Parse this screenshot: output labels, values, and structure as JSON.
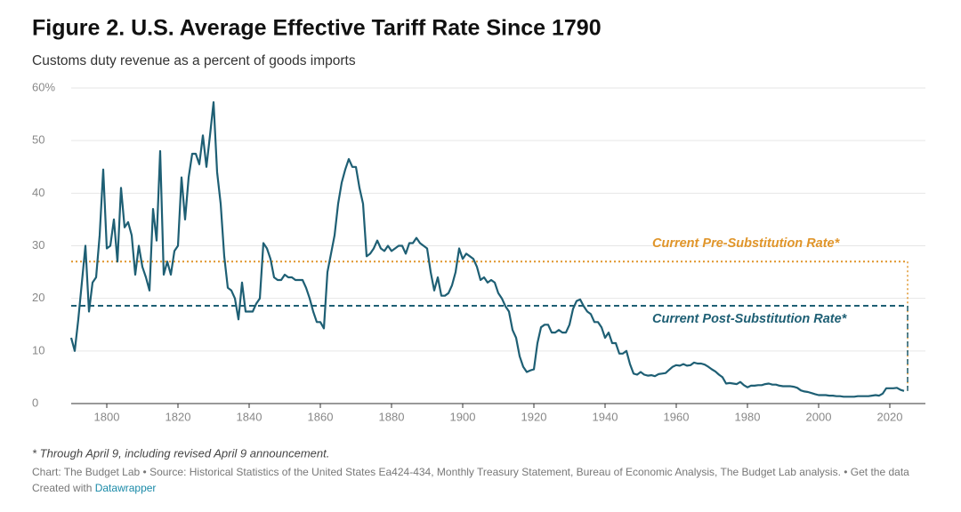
{
  "chart_data": {
    "type": "line",
    "title": "Figure 2. U.S. Average Effective Tariff Rate Since 1790",
    "subtitle": "Customs duty revenue as a percent of goods imports",
    "note": "* Through April 9, including revised April 9 announcement.",
    "source": "Chart: The Budget Lab • Source: Historical Statistics of the United States Ea424-434, Monthly Treasury Statement, Bureau of Economic Analysis, The Budget Lab analysis. • Get the data",
    "credit": "Created with",
    "credit_link": "Datawrapper",
    "color": "#1e5f74",
    "grid": true,
    "xlim": [
      1790,
      2030
    ],
    "ylim": [
      0,
      60
    ],
    "xticks": [
      1800,
      1820,
      1840,
      1860,
      1880,
      1900,
      1920,
      1940,
      1960,
      1980,
      2000,
      2020
    ],
    "yticks": [
      0,
      10,
      20,
      30,
      40,
      50,
      {
        "value": 60,
        "label": "60%"
      }
    ],
    "reference_lines": [
      {
        "label": "Current Pre-Substitution Rate*",
        "value": 27,
        "color": "#e0952a",
        "style": "dotted"
      },
      {
        "label": "Current Post-Substitution Rate*",
        "value": 18.6,
        "color": "#1e5f74",
        "style": "dashed"
      }
    ],
    "x": [
      1790,
      1791,
      1792,
      1793,
      1794,
      1795,
      1796,
      1797,
      1798,
      1799,
      1800,
      1801,
      1802,
      1803,
      1804,
      1805,
      1806,
      1807,
      1808,
      1809,
      1810,
      1811,
      1812,
      1813,
      1814,
      1815,
      1816,
      1817,
      1818,
      1819,
      1820,
      1821,
      1822,
      1823,
      1824,
      1825,
      1826,
      1827,
      1828,
      1829,
      1830,
      1831,
      1832,
      1833,
      1834,
      1835,
      1836,
      1837,
      1838,
      1839,
      1840,
      1841,
      1842,
      1843,
      1844,
      1845,
      1846,
      1847,
      1848,
      1849,
      1850,
      1851,
      1852,
      1853,
      1854,
      1855,
      1856,
      1857,
      1858,
      1859,
      1860,
      1861,
      1862,
      1863,
      1864,
      1865,
      1866,
      1867,
      1868,
      1869,
      1870,
      1871,
      1872,
      1873,
      1874,
      1875,
      1876,
      1877,
      1878,
      1879,
      1880,
      1881,
      1882,
      1883,
      1884,
      1885,
      1886,
      1887,
      1888,
      1889,
      1890,
      1891,
      1892,
      1893,
      1894,
      1895,
      1896,
      1897,
      1898,
      1899,
      1900,
      1901,
      1902,
      1903,
      1904,
      1905,
      1906,
      1907,
      1908,
      1909,
      1910,
      1911,
      1912,
      1913,
      1914,
      1915,
      1916,
      1917,
      1918,
      1919,
      1920,
      1921,
      1922,
      1923,
      1924,
      1925,
      1926,
      1927,
      1928,
      1929,
      1930,
      1931,
      1932,
      1933,
      1934,
      1935,
      1936,
      1937,
      1938,
      1939,
      1940,
      1941,
      1942,
      1943,
      1944,
      1945,
      1946,
      1947,
      1948,
      1949,
      1950,
      1951,
      1952,
      1953,
      1954,
      1955,
      1956,
      1957,
      1958,
      1959,
      1960,
      1961,
      1962,
      1963,
      1964,
      1965,
      1966,
      1967,
      1968,
      1969,
      1970,
      1971,
      1972,
      1973,
      1974,
      1975,
      1976,
      1977,
      1978,
      1979,
      1980,
      1981,
      1982,
      1983,
      1984,
      1985,
      1986,
      1987,
      1988,
      1989,
      1990,
      1991,
      1992,
      1993,
      1994,
      1995,
      1996,
      1997,
      1998,
      1999,
      2000,
      2001,
      2002,
      2003,
      2004,
      2005,
      2006,
      2007,
      2008,
      2009,
      2010,
      2011,
      2012,
      2013,
      2014,
      2015,
      2016,
      2017,
      2018,
      2019,
      2020,
      2021,
      2022,
      2023,
      2024
    ],
    "values": [
      12.5,
      10,
      16,
      23,
      30,
      17.5,
      23,
      24,
      32,
      44.5,
      29.5,
      30,
      35,
      27,
      41,
      33.5,
      34.5,
      32,
      24.5,
      30,
      26,
      24,
      21.5,
      37,
      31,
      48,
      24.5,
      27,
      24.5,
      29,
      30,
      43,
      35,
      43,
      47.5,
      47.5,
      45.5,
      51,
      45,
      51,
      57.3,
      44,
      38,
      28,
      22,
      21.5,
      20,
      16,
      23,
      17.5,
      17.5,
      17.5,
      19,
      20,
      30.5,
      29.5,
      27.5,
      24,
      23.5,
      23.5,
      24.5,
      24,
      24,
      23.5,
      23.5,
      23.5,
      22,
      20,
      17.5,
      15.5,
      15.5,
      14.3,
      25,
      28.5,
      32,
      38,
      42,
      44.5,
      46.5,
      45,
      45,
      41,
      38,
      28,
      28.5,
      29.5,
      31,
      29.5,
      29,
      30,
      29,
      29.5,
      30,
      30,
      28.5,
      30.5,
      30.5,
      31.5,
      30.5,
      30,
      29.5,
      25,
      21.5,
      24,
      20.5,
      20.5,
      21,
      22.5,
      25,
      29.5,
      27.5,
      28.5,
      28,
      27.5,
      26,
      23.5,
      24,
      23,
      23.5,
      23,
      21,
      20,
      18.5,
      17.5,
      14,
      12.5,
      9,
      7,
      6,
      6.3,
      6.5,
      11.5,
      14.5,
      15,
      15,
      13.5,
      13.5,
      14,
      13.5,
      13.5,
      15,
      18,
      19.5,
      19.8,
      18.5,
      17.5,
      17,
      15.5,
      15.5,
      14.5,
      12.5,
      13.5,
      11.5,
      11.5,
      9.5,
      9.5,
      10,
      7.5,
      5.7,
      5.5,
      6,
      5.5,
      5.3,
      5.4,
      5.2,
      5.6,
      5.7,
      5.8,
      6.4,
      7,
      7.3,
      7.2,
      7.5,
      7.2,
      7.3,
      7.8,
      7.6,
      7.6,
      7.4,
      7,
      6.5,
      6.1,
      5.5,
      5,
      3.8,
      3.9,
      3.8,
      3.7,
      4.1,
      3.5,
      3.1,
      3.4,
      3.4,
      3.5,
      3.5,
      3.7,
      3.8,
      3.6,
      3.6,
      3.4,
      3.3,
      3.3,
      3.3,
      3.2,
      3,
      2.5,
      2.3,
      2.2,
      2,
      1.8,
      1.6,
      1.6,
      1.6,
      1.5,
      1.5,
      1.4,
      1.4,
      1.3,
      1.3,
      1.3,
      1.3,
      1.4,
      1.4,
      1.4,
      1.4,
      1.5,
      1.6,
      1.5,
      1.9,
      2.9,
      2.9,
      2.9,
      3,
      2.6,
      2.4
    ]
  }
}
